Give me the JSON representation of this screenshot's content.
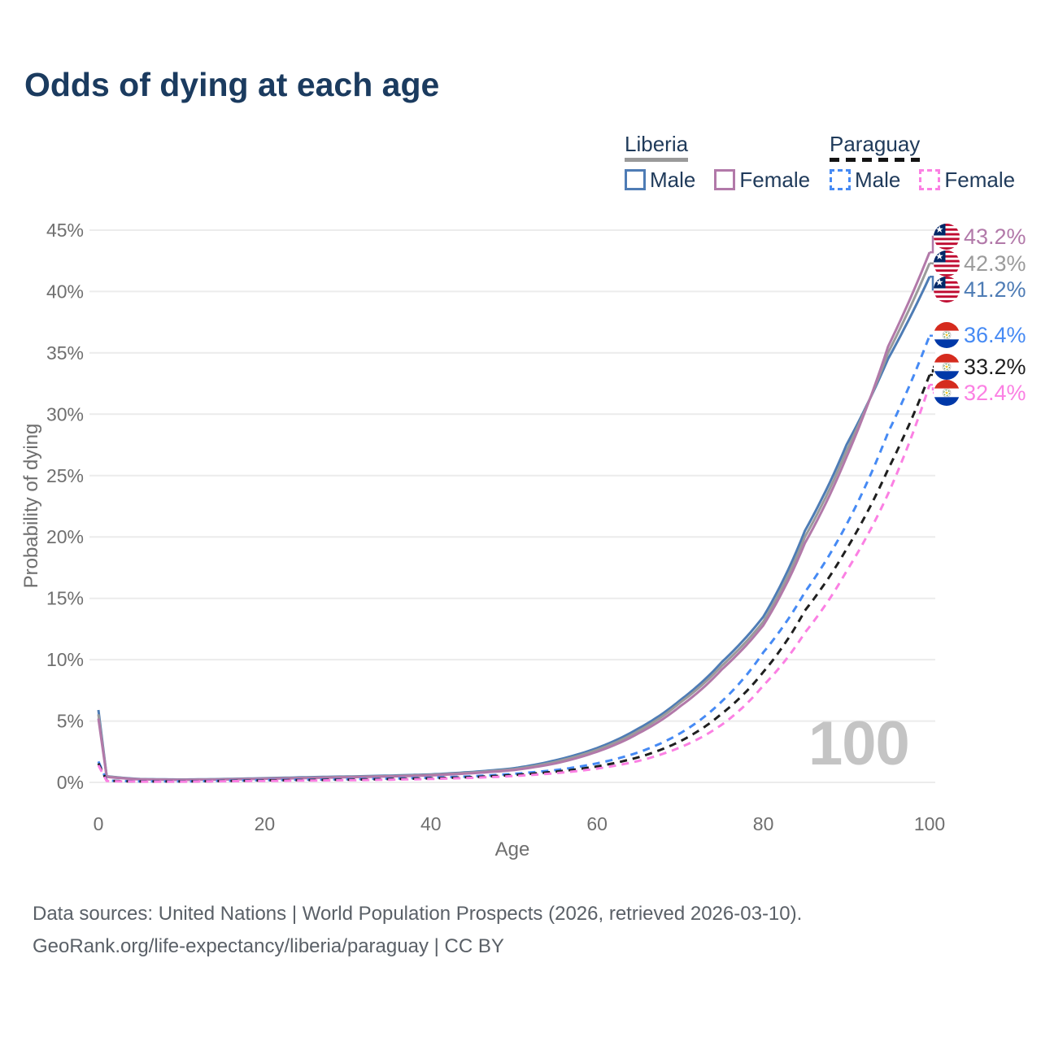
{
  "title": "Odds of dying at each age",
  "watermark": "100",
  "legend": {
    "groups": [
      {
        "country": "Liberia",
        "line_style": "solid",
        "key_color": "#9a9a9a",
        "items": [
          {
            "label": "Male",
            "color": "#4e7cb5"
          },
          {
            "label": "Female",
            "color": "#b279a9"
          }
        ]
      },
      {
        "country": "Paraguay",
        "line_style": "dashed",
        "key_color": "#141414",
        "items": [
          {
            "label": "Male",
            "color": "#468af4"
          },
          {
            "label": "Female",
            "color": "#fb80e3"
          }
        ]
      }
    ]
  },
  "footer": {
    "line1": "Data sources: United Nations | World Population Prospects (2026, retrieved 2026-03-10).",
    "line2": "GeoRank.org/life-expectancy/liberia/paraguay | CC BY"
  },
  "colors": {
    "title_text": "#1b3b5f",
    "legend_text": "#1f3a5a",
    "axis_text": "#6f6f6f",
    "grid_line": "#ececec",
    "footer_text": "#5a6067",
    "watermark_text": "#c4c4c4"
  },
  "chart_data": {
    "type": "line",
    "title": "Odds of dying at each age",
    "xlabel": "Age",
    "ylabel": "Probability of dying",
    "xlim": [
      0,
      100
    ],
    "ylim": [
      0,
      45
    ],
    "x_ticks": [
      0,
      20,
      40,
      60,
      80,
      100
    ],
    "y_ticks_percent": [
      0,
      5,
      10,
      15,
      20,
      25,
      30,
      35,
      40,
      45
    ],
    "grid": "horizontal-only",
    "legend_position": "top-right",
    "ages": [
      0,
      1,
      5,
      10,
      15,
      20,
      25,
      30,
      35,
      40,
      45,
      50,
      55,
      60,
      65,
      70,
      75,
      80,
      85,
      90,
      95,
      100
    ],
    "series": [
      {
        "name": "Liberia Male",
        "country": "Liberia",
        "sex": "Male",
        "flag": "liberia",
        "style": "solid",
        "color": "#4e7cb5",
        "end_label": "41.2%",
        "values": [
          5.9,
          0.5,
          0.27,
          0.23,
          0.27,
          0.34,
          0.42,
          0.48,
          0.55,
          0.65,
          0.85,
          1.15,
          1.8,
          2.8,
          4.4,
          6.7,
          9.8,
          13.5,
          20.5,
          27.5,
          34.5,
          41.2
        ]
      },
      {
        "name": "Liberia Both sexes",
        "country": "Liberia",
        "sex": "Both",
        "flag": "liberia",
        "style": "solid",
        "color": "#9b9b9b",
        "end_label": "42.3%",
        "values": [
          5.55,
          0.48,
          0.25,
          0.21,
          0.25,
          0.31,
          0.38,
          0.45,
          0.51,
          0.61,
          0.8,
          1.07,
          1.68,
          2.65,
          4.2,
          6.5,
          9.5,
          13.1,
          20.0,
          27.0,
          35.0,
          42.3
        ]
      },
      {
        "name": "Liberia Female",
        "country": "Liberia",
        "sex": "Female",
        "flag": "liberia",
        "style": "solid",
        "color": "#b279a9",
        "end_label": "43.2%",
        "values": [
          5.2,
          0.45,
          0.24,
          0.2,
          0.23,
          0.29,
          0.35,
          0.42,
          0.48,
          0.57,
          0.75,
          1.0,
          1.55,
          2.5,
          4.0,
          6.2,
          9.2,
          12.8,
          19.5,
          26.5,
          35.5,
          43.2
        ]
      },
      {
        "name": "Paraguay Male",
        "country": "Paraguay",
        "sex": "Male",
        "flag": "paraguay",
        "style": "dashed",
        "color": "#468af4",
        "end_label": "36.4%",
        "values": [
          1.7,
          0.15,
          0.08,
          0.08,
          0.13,
          0.19,
          0.22,
          0.26,
          0.31,
          0.38,
          0.5,
          0.7,
          1.0,
          1.55,
          2.45,
          4.0,
          6.6,
          10.6,
          15.5,
          21.0,
          28.5,
          36.4
        ]
      },
      {
        "name": "Paraguay Both sexes",
        "country": "Paraguay",
        "sex": "Both",
        "flag": "paraguay",
        "style": "dashed",
        "color": "#1f1f1f",
        "end_label": "33.2%",
        "values": [
          1.55,
          0.13,
          0.07,
          0.07,
          0.11,
          0.16,
          0.19,
          0.22,
          0.27,
          0.33,
          0.43,
          0.6,
          0.87,
          1.3,
          2.05,
          3.35,
          5.6,
          9.0,
          14.0,
          19.0,
          25.5,
          33.2
        ]
      },
      {
        "name": "Paraguay Female",
        "country": "Paraguay",
        "sex": "Female",
        "flag": "paraguay",
        "style": "dashed",
        "color": "#fb80e3",
        "end_label": "32.4%",
        "values": [
          1.4,
          0.11,
          0.06,
          0.06,
          0.09,
          0.12,
          0.15,
          0.18,
          0.22,
          0.28,
          0.37,
          0.52,
          0.75,
          1.12,
          1.75,
          2.85,
          4.7,
          7.9,
          12.2,
          17.2,
          23.5,
          32.4
        ]
      }
    ]
  }
}
